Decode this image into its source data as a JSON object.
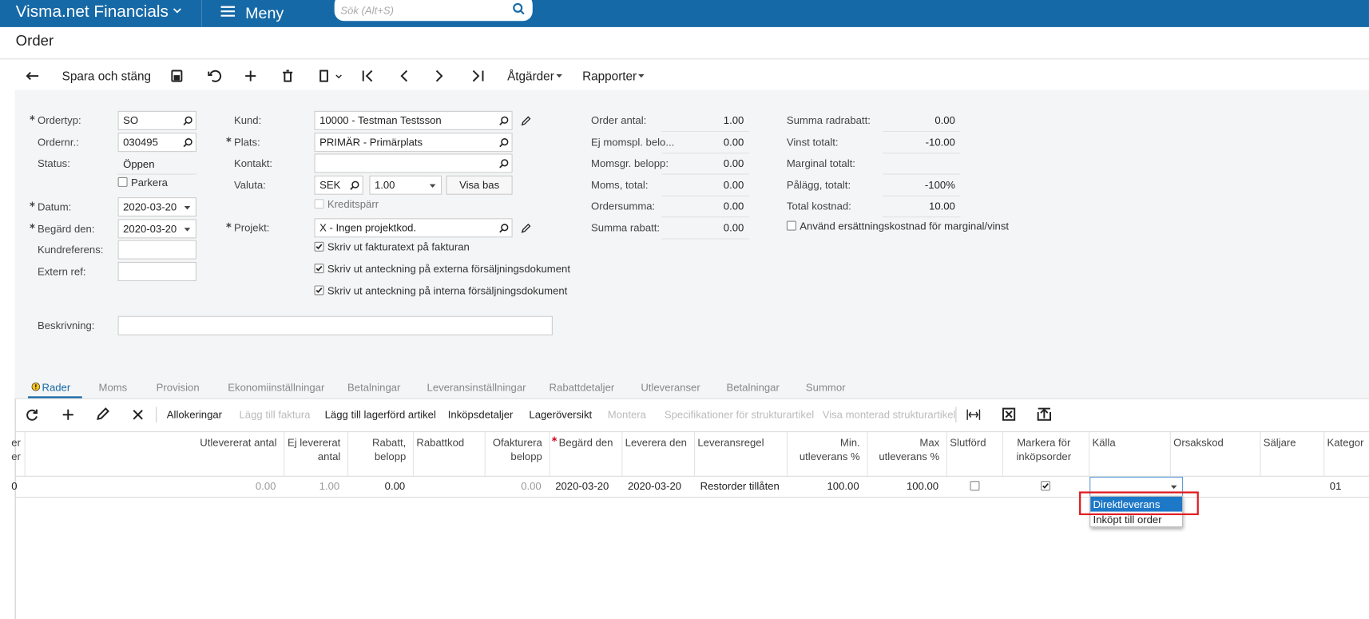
{
  "header": {
    "brand": "Visma.net Financials",
    "menu": "Meny",
    "search_placeholder": "Sök (Alt+S)"
  },
  "page_title": "Order",
  "toolbar": {
    "save_close": "Spara och stäng",
    "actions": "Åtgärder",
    "reports": "Rapporter"
  },
  "form": {
    "fields": [
      {
        "label": "Ordertyp:",
        "required": true,
        "value": "SO",
        "kind": "lookup"
      },
      {
        "label": "Ordernr.:",
        "value": "030495",
        "kind": "lookup"
      },
      {
        "label": "Status:",
        "value": "Öppen",
        "kind": "text"
      },
      {
        "label": "Datum:",
        "required": true,
        "value": "2020-03-20",
        "kind": "select"
      },
      {
        "label": "Begärd den:",
        "required": true,
        "value": "2020-03-20",
        "kind": "select"
      },
      {
        "label": "Kundreferens:",
        "kind": "input"
      },
      {
        "label": "Extern ref:",
        "kind": "input"
      },
      {
        "label": "Beskrivning:",
        "kind": "input"
      },
      {
        "label": "Kund:",
        "value": "10000 - Testman Testsson",
        "kind": "lookup",
        "editable": true
      },
      {
        "label": "Plats:",
        "required": true,
        "value": "PRIMÄR - Primärplats",
        "kind": "lookup"
      },
      {
        "label": "Kontakt:",
        "kind": "lookup"
      },
      {
        "label": "Valuta:",
        "value": "SEK",
        "kind": "lookup",
        "rate": "1.00",
        "button": "Visa bas"
      },
      {
        "label": "Projekt:",
        "required": true,
        "value": "X - Ingen projektkod.",
        "kind": "lookup",
        "editable": true
      }
    ],
    "checkboxes": [
      {
        "label": "Parkera",
        "checked": false
      },
      {
        "label": "Kreditspärr",
        "checked": false,
        "disabled": true
      },
      {
        "label": "Skriv ut fakturatext på fakturan",
        "checked": true
      },
      {
        "label": "Skriv ut anteckning på externa försäljningsdokument",
        "checked": true
      },
      {
        "label": "Skriv ut anteckning på interna försäljningsdokument",
        "checked": true
      },
      {
        "label": "Använd ersättningskostnad för marginal/vinst",
        "checked": false
      }
    ],
    "summary": [
      [
        {
          "label": "Order antal:",
          "value": "1.00"
        },
        {
          "label": "Ej momspl. belo...",
          "value": "0.00"
        },
        {
          "label": "Momsgr. belopp:",
          "value": "0.00"
        },
        {
          "label": "Moms, total:",
          "value": "0.00"
        },
        {
          "label": "Ordersumma:",
          "value": "0.00"
        },
        {
          "label": "Summa rabatt:",
          "value": "0.00"
        }
      ],
      [
        {
          "label": "Summa radrabatt:",
          "value": "0.00"
        },
        {
          "label": "Vinst totalt:",
          "value": "-10.00"
        },
        {
          "label": "Marginal totalt:"
        },
        {
          "label": "Pålägg, totalt:",
          "value": "-100%"
        },
        {
          "label": "Total kostnad:",
          "value": "10.00"
        }
      ]
    ]
  },
  "tabs": {
    "items": [
      "Rader",
      "Moms",
      "Provision",
      "Ekonomiinställningar",
      "Betalningar",
      "Leveransinställningar",
      "Rabattdetaljer",
      "Utleveranser",
      "Betalningar",
      "Summor"
    ],
    "active": 0
  },
  "grid": {
    "toolbar": [
      {
        "label": "Allokeringar"
      },
      {
        "label": "Lägg till faktura",
        "disabled": true
      },
      {
        "label": "Lägg till lagerförd artikel"
      },
      {
        "label": "Inköpsdetaljer"
      },
      {
        "label": "Lageröversikt"
      },
      {
        "label": "Montera",
        "disabled": true
      },
      {
        "label": "Specifikationer för strukturartikel",
        "disabled": true
      },
      {
        "label": "Visa monterad strukturartikel",
        "disabled": true
      }
    ],
    "columns": [
      {
        "header": "er er",
        "cell": "0",
        "align": "left"
      },
      {
        "header": "Utlevererat antal",
        "cell": "0.00",
        "align": "right",
        "muted": true
      },
      {
        "header": "Ej levererat antal",
        "cell": "1.00",
        "align": "right",
        "muted": true
      },
      {
        "header": "Rabatt, belopp",
        "cell": "0.00",
        "align": "right"
      },
      {
        "header": "Rabattkod",
        "align": "left"
      },
      {
        "header": "Ofakturera belopp",
        "cell": "0.00",
        "align": "right",
        "muted": true
      },
      {
        "header": "Begärd den",
        "required": true,
        "cell": "2020-03-20",
        "align": "left"
      },
      {
        "header": "Leverera den",
        "cell": "2020-03-20",
        "align": "left"
      },
      {
        "header": "Leveransregel",
        "cell": "Restorder tillåten",
        "align": "left"
      },
      {
        "header": "Min. utleverans %",
        "cell": "100.00",
        "align": "right"
      },
      {
        "header": "Max utleverans %",
        "cell": "100.00",
        "align": "right"
      },
      {
        "header": "Slutförd",
        "checked": false,
        "align": "left"
      },
      {
        "header": "Markera för inköpsorder",
        "checked": true,
        "align": "center"
      },
      {
        "header": "Källa",
        "cell": "Direktleverans",
        "align": "left"
      },
      {
        "header": "Orsakskod",
        "align": "left"
      },
      {
        "header": "Säljare",
        "align": "left"
      },
      {
        "header": "Kategor",
        "cell": "01",
        "align": "left"
      }
    ],
    "dropdown": {
      "options": [
        "Direktleverans",
        "Inköpt till order"
      ],
      "selected": 0
    }
  }
}
